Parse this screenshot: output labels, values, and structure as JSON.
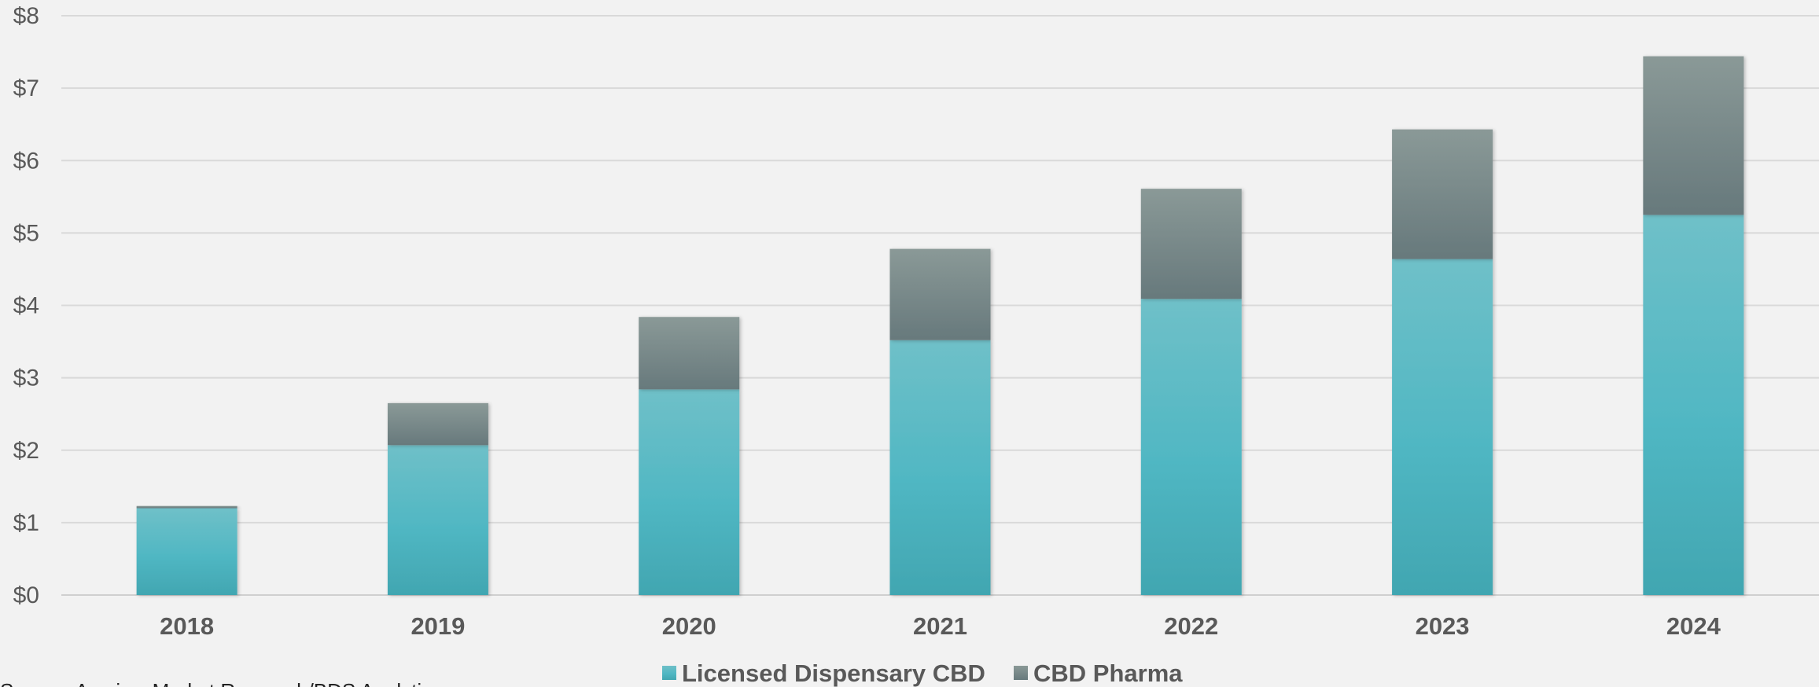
{
  "chart_data": {
    "type": "bar",
    "stacked": true,
    "categories": [
      "2018",
      "2019",
      "2020",
      "2021",
      "2022",
      "2023",
      "2024"
    ],
    "series": [
      {
        "name": "Licensed Dispensary CBD",
        "values": [
          1.2,
          2.07,
          2.84,
          3.52,
          4.09,
          4.64,
          5.25
        ],
        "color": "#4fb6c3"
      },
      {
        "name": "CBD Pharma",
        "values": [
          0.03,
          0.58,
          1.0,
          1.26,
          1.52,
          1.79,
          2.19
        ],
        "color": "#6f8384"
      }
    ],
    "yticks": [
      "$0",
      "$1",
      "$2",
      "$3",
      "$4",
      "$5",
      "$6",
      "$7",
      "$8"
    ],
    "ylim": [
      0,
      8
    ],
    "grid": true,
    "legend_position": "bottom",
    "source_note": "Source: Arcview Market Research/BDS Analytics"
  }
}
